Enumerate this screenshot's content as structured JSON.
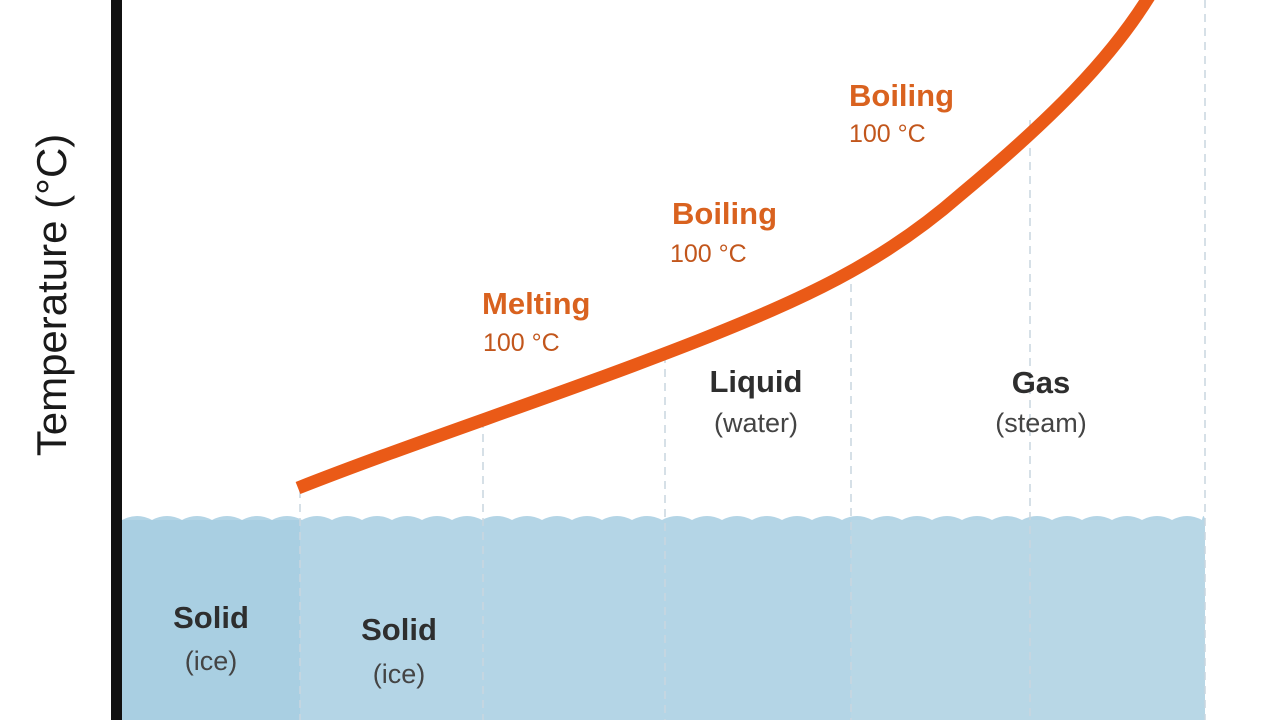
{
  "axis_label": "Temperature (°C)",
  "annotations": [
    {
      "title": "Melting",
      "value": "100 °C"
    },
    {
      "title": "Boiling",
      "value": "100 °C"
    },
    {
      "title": "Boiling",
      "value": "100 °C"
    }
  ],
  "regions": [
    {
      "name": "Solid",
      "detail": "(ice)"
    },
    {
      "name": "Solid",
      "detail": "(ice)"
    },
    {
      "name": "Liquid",
      "detail": "(water)"
    },
    {
      "name": "Gas",
      "detail": "(steam)"
    }
  ]
}
